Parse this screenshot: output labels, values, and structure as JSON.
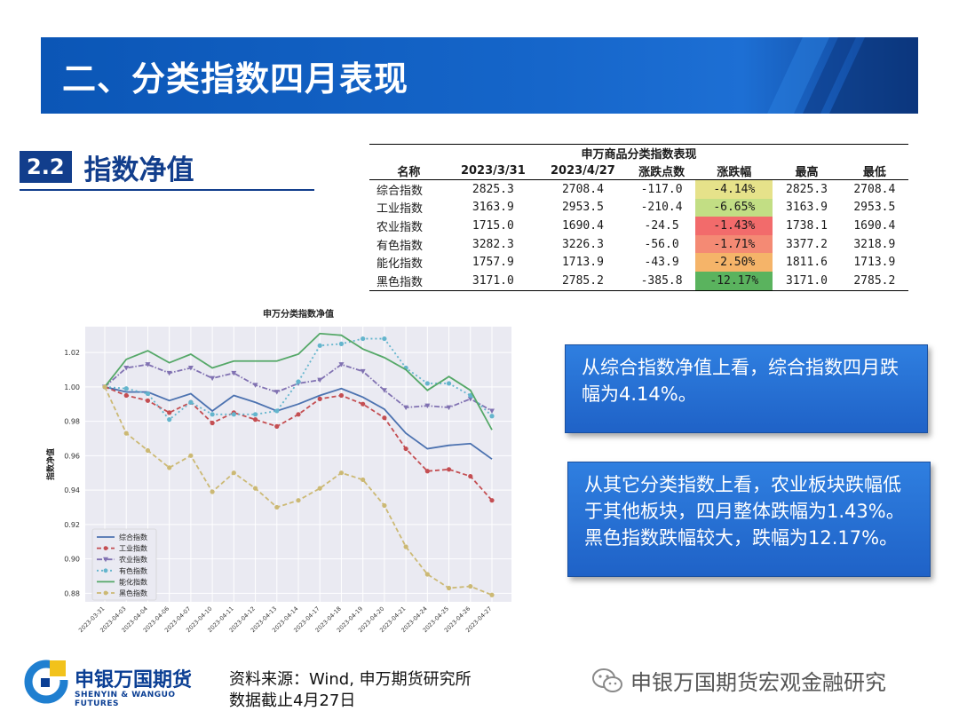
{
  "header": {
    "title": "二、分类指数四月表现"
  },
  "section": {
    "number": "2.2",
    "label": "指数净值"
  },
  "table": {
    "caption": "申万商品分类指数表现",
    "columns": [
      "名称",
      "2023/3/31",
      "2023/4/27",
      "涨跌点数",
      "涨跌幅",
      "最高",
      "最低"
    ],
    "rows": [
      {
        "name": "综合指数",
        "v1": "2825.3",
        "v2": "2708.4",
        "pts": "-117.0",
        "pct": "-4.14%",
        "high": "2825.3",
        "low": "2708.4",
        "color": "#e6e28a"
      },
      {
        "name": "工业指数",
        "v1": "3163.9",
        "v2": "2953.5",
        "pts": "-210.4",
        "pct": "-6.65%",
        "high": "3163.9",
        "low": "2953.5",
        "color": "#c2de84"
      },
      {
        "name": "农业指数",
        "v1": "1715.0",
        "v2": "1690.4",
        "pts": "-24.5",
        "pct": "-1.43%",
        "high": "1738.1",
        "low": "1690.4",
        "color": "#f26b6b"
      },
      {
        "name": "有色指数",
        "v1": "3282.3",
        "v2": "3226.3",
        "pts": "-56.0",
        "pct": "-1.71%",
        "high": "3377.2",
        "low": "3218.9",
        "color": "#f48a74"
      },
      {
        "name": "能化指数",
        "v1": "1757.9",
        "v2": "1713.9",
        "pts": "-43.9",
        "pct": "-2.50%",
        "high": "1811.6",
        "low": "1713.9",
        "color": "#f5b469"
      },
      {
        "name": "黑色指数",
        "v1": "3171.0",
        "v2": "2785.2",
        "pts": "-385.8",
        "pct": "-12.17%",
        "high": "3171.0",
        "low": "2785.2",
        "color": "#5ab35e"
      }
    ]
  },
  "chart_data": {
    "type": "line",
    "title": "申万分类指数净值",
    "xlabel": "",
    "ylabel": "指数净值",
    "ylim": [
      0.875,
      1.035
    ],
    "yticks": [
      "0.88",
      "0.90",
      "0.92",
      "0.94",
      "0.96",
      "0.98",
      "1.00",
      "1.02"
    ],
    "x": [
      "2023-03-31",
      "2023-04-03",
      "2023-04-04",
      "2023-04-06",
      "2023-04-07",
      "2023-04-10",
      "2023-04-11",
      "2023-04-12",
      "2023-04-13",
      "2023-04-14",
      "2023-04-17",
      "2023-04-18",
      "2023-04-19",
      "2023-04-20",
      "2023-04-21",
      "2023-04-24",
      "2023-04-25",
      "2023-04-26",
      "2023-04-27"
    ],
    "legend_position": "lower-left",
    "grid": true,
    "series": [
      {
        "name": "综合指数",
        "color": "#4c72b0",
        "marker": "none",
        "dash": "solid",
        "values": [
          1.0,
          0.997,
          0.997,
          0.992,
          0.996,
          0.986,
          0.995,
          0.991,
          0.986,
          0.99,
          0.995,
          0.999,
          0.994,
          0.987,
          0.973,
          0.964,
          0.966,
          0.967,
          0.958
        ]
      },
      {
        "name": "工业指数",
        "color": "#c44e52",
        "marker": "circle",
        "dash": "dashed",
        "values": [
          1.0,
          0.995,
          0.992,
          0.985,
          0.991,
          0.979,
          0.985,
          0.981,
          0.977,
          0.984,
          0.993,
          0.995,
          0.99,
          0.982,
          0.964,
          0.951,
          0.952,
          0.948,
          0.934
        ]
      },
      {
        "name": "农业指数",
        "color": "#8172b2",
        "marker": "triangle",
        "dash": "dashdot",
        "values": [
          1.0,
          1.011,
          1.013,
          1.008,
          1.011,
          1.005,
          1.008,
          1.001,
          0.997,
          1.002,
          1.004,
          1.013,
          1.009,
          0.998,
          0.988,
          0.989,
          0.988,
          0.993,
          0.986
        ]
      },
      {
        "name": "有色指数",
        "color": "#64b5cd",
        "marker": "circle",
        "dash": "dotted",
        "values": [
          1.0,
          0.999,
          0.996,
          0.981,
          0.991,
          0.984,
          0.984,
          0.984,
          0.986,
          1.003,
          1.024,
          1.025,
          1.028,
          1.028,
          1.011,
          1.002,
          1.002,
          0.995,
          0.983
        ]
      },
      {
        "name": "能化指数",
        "color": "#55a868",
        "marker": "none",
        "dash": "solid",
        "values": [
          1.0,
          1.016,
          1.021,
          1.014,
          1.019,
          1.011,
          1.015,
          1.015,
          1.015,
          1.019,
          1.031,
          1.03,
          1.022,
          1.017,
          1.01,
          0.998,
          1.006,
          0.998,
          0.975
        ]
      },
      {
        "name": "黑色指数",
        "color": "#ccb974",
        "marker": "circle",
        "dash": "dashed",
        "values": [
          1.0,
          0.973,
          0.963,
          0.953,
          0.96,
          0.939,
          0.95,
          0.941,
          0.93,
          0.934,
          0.941,
          0.95,
          0.946,
          0.931,
          0.907,
          0.891,
          0.883,
          0.884,
          0.879
        ]
      }
    ]
  },
  "callouts": {
    "first": "从综合指数净值上看，综合指数四月跌幅为4.14%。",
    "second": "从其它分类指数上看，农业板块跌幅低于其他板块，四月整体跌幅为1.43%。黑色指数跌幅较大，跌幅为12.17%。"
  },
  "footer": {
    "logo_cn": "申银万国期货",
    "logo_en": "SHENYIN & WANGUO FUTURES",
    "source_line": "资料来源：Wind, 申万期货研究所",
    "date_line": "数据截止4月27日",
    "wechat": "申银万国期货宏观金融研究"
  }
}
